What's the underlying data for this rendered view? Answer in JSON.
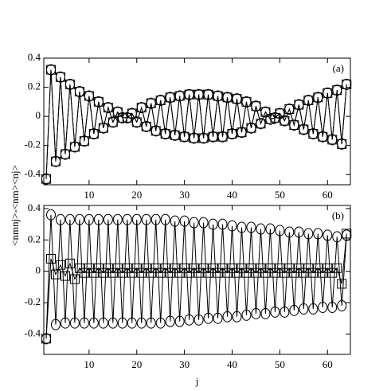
{
  "chart_data": [
    {
      "type": "line",
      "panel_label": "(a)",
      "ylabel": "<nmnj>-<nm><nj>",
      "x": [
        1,
        2,
        3,
        4,
        5,
        6,
        7,
        8,
        9,
        10,
        11,
        12,
        13,
        14,
        15,
        16,
        17,
        18,
        19,
        20,
        21,
        22,
        23,
        24,
        25,
        26,
        27,
        28,
        29,
        30,
        31,
        32,
        33,
        34,
        35,
        36,
        37,
        38,
        39,
        40,
        41,
        42,
        43,
        44,
        45,
        46,
        47,
        48,
        49,
        50,
        51,
        52,
        53,
        54,
        55,
        56,
        57,
        58,
        59,
        60,
        61,
        62,
        63,
        64
      ],
      "xlim": [
        0.5,
        64.8
      ],
      "ylim": [
        -0.47,
        0.4
      ],
      "xticks": [
        10,
        20,
        30,
        40,
        50,
        60
      ],
      "yticks": [
        0.4,
        0.2,
        0,
        -0.2,
        -0.4
      ],
      "series": [
        {
          "marker": "circle",
          "color": "#000000",
          "values": [
            -0.43,
            0.32,
            -0.31,
            0.27,
            -0.26,
            0.22,
            -0.21,
            0.17,
            -0.17,
            0.14,
            -0.12,
            0.1,
            -0.08,
            0.06,
            -0.04,
            0.03,
            -0.01,
            -0.01,
            0.02,
            -0.04,
            0.06,
            -0.07,
            0.09,
            -0.1,
            0.11,
            -0.12,
            0.13,
            -0.13,
            0.14,
            -0.14,
            0.15,
            -0.15,
            0.15,
            -0.15,
            0.15,
            -0.14,
            0.14,
            -0.14,
            0.13,
            -0.12,
            0.12,
            -0.11,
            0.1,
            -0.08,
            0.07,
            -0.05,
            0.03,
            -0.02,
            -0.01,
            0.02,
            -0.03,
            0.05,
            -0.06,
            0.08,
            -0.09,
            0.11,
            -0.12,
            0.13,
            -0.14,
            0.16,
            -0.16,
            0.18,
            -0.19,
            0.22
          ]
        },
        {
          "marker": "square",
          "color": "#000000",
          "values": [
            -0.43,
            0.32,
            -0.31,
            0.27,
            -0.26,
            0.22,
            -0.21,
            0.17,
            -0.17,
            0.14,
            -0.12,
            0.1,
            -0.08,
            0.06,
            -0.04,
            0.03,
            -0.01,
            -0.01,
            0.02,
            -0.04,
            0.06,
            -0.07,
            0.09,
            -0.1,
            0.11,
            -0.12,
            0.13,
            -0.13,
            0.14,
            -0.14,
            0.15,
            -0.15,
            0.15,
            -0.15,
            0.15,
            -0.14,
            0.14,
            -0.14,
            0.13,
            -0.12,
            0.12,
            -0.11,
            0.1,
            -0.08,
            0.07,
            -0.05,
            0.03,
            -0.02,
            -0.01,
            0.02,
            -0.03,
            0.05,
            -0.06,
            0.08,
            -0.09,
            0.11,
            -0.12,
            0.13,
            -0.14,
            0.16,
            -0.16,
            0.18,
            -0.19,
            0.22
          ]
        }
      ]
    },
    {
      "type": "line",
      "panel_label": "(b)",
      "xlabel": "j",
      "x": [
        1,
        2,
        3,
        4,
        5,
        6,
        7,
        8,
        9,
        10,
        11,
        12,
        13,
        14,
        15,
        16,
        17,
        18,
        19,
        20,
        21,
        22,
        23,
        24,
        25,
        26,
        27,
        28,
        29,
        30,
        31,
        32,
        33,
        34,
        35,
        36,
        37,
        38,
        39,
        40,
        41,
        42,
        43,
        44,
        45,
        46,
        47,
        48,
        49,
        50,
        51,
        52,
        53,
        54,
        55,
        56,
        57,
        58,
        59,
        60,
        61,
        62,
        63,
        64
      ],
      "xlim": [
        0.5,
        64.8
      ],
      "ylim": [
        -0.53,
        0.42
      ],
      "xticks": [
        10,
        20,
        30,
        40,
        50,
        60
      ],
      "yticks": [
        0.4,
        0.2,
        0,
        -0.2,
        -0.4
      ],
      "series": [
        {
          "marker": "circle",
          "color": "#000000",
          "values": [
            -0.43,
            0.36,
            -0.34,
            0.33,
            -0.33,
            0.33,
            -0.33,
            0.33,
            -0.33,
            0.33,
            -0.33,
            0.33,
            -0.33,
            0.33,
            -0.33,
            0.33,
            -0.33,
            0.33,
            -0.33,
            0.33,
            -0.33,
            0.33,
            -0.33,
            0.33,
            -0.33,
            0.33,
            -0.32,
            0.32,
            -0.32,
            0.32,
            -0.31,
            0.31,
            -0.31,
            0.31,
            -0.3,
            0.3,
            -0.3,
            0.3,
            -0.29,
            0.29,
            -0.29,
            0.28,
            -0.28,
            0.28,
            -0.27,
            0.27,
            -0.27,
            0.27,
            -0.26,
            0.26,
            -0.26,
            0.25,
            -0.25,
            0.25,
            -0.24,
            0.24,
            -0.24,
            0.24,
            -0.23,
            0.23,
            -0.23,
            0.22,
            -0.22,
            0.23
          ]
        },
        {
          "marker": "square",
          "color": "#000000",
          "values": [
            -0.43,
            0.08,
            -0.02,
            0.04,
            -0.03,
            0.05,
            -0.05,
            0.02,
            -0.01,
            0.02,
            -0.01,
            0.02,
            -0.01,
            0.02,
            -0.01,
            0.02,
            -0.01,
            0.02,
            -0.01,
            0.02,
            -0.01,
            0.02,
            -0.01,
            0.02,
            -0.01,
            0.02,
            -0.01,
            0.02,
            -0.01,
            0.02,
            -0.01,
            0.02,
            -0.01,
            0.02,
            -0.01,
            0.02,
            -0.01,
            0.02,
            -0.01,
            0.02,
            -0.01,
            0.02,
            -0.01,
            0.02,
            -0.01,
            0.02,
            -0.01,
            0.02,
            -0.01,
            0.02,
            -0.01,
            0.02,
            -0.01,
            0.02,
            -0.01,
            0.02,
            -0.01,
            0.02,
            -0.01,
            0.02,
            -0.01,
            0.02,
            -0.08,
            0.24
          ]
        }
      ]
    }
  ]
}
